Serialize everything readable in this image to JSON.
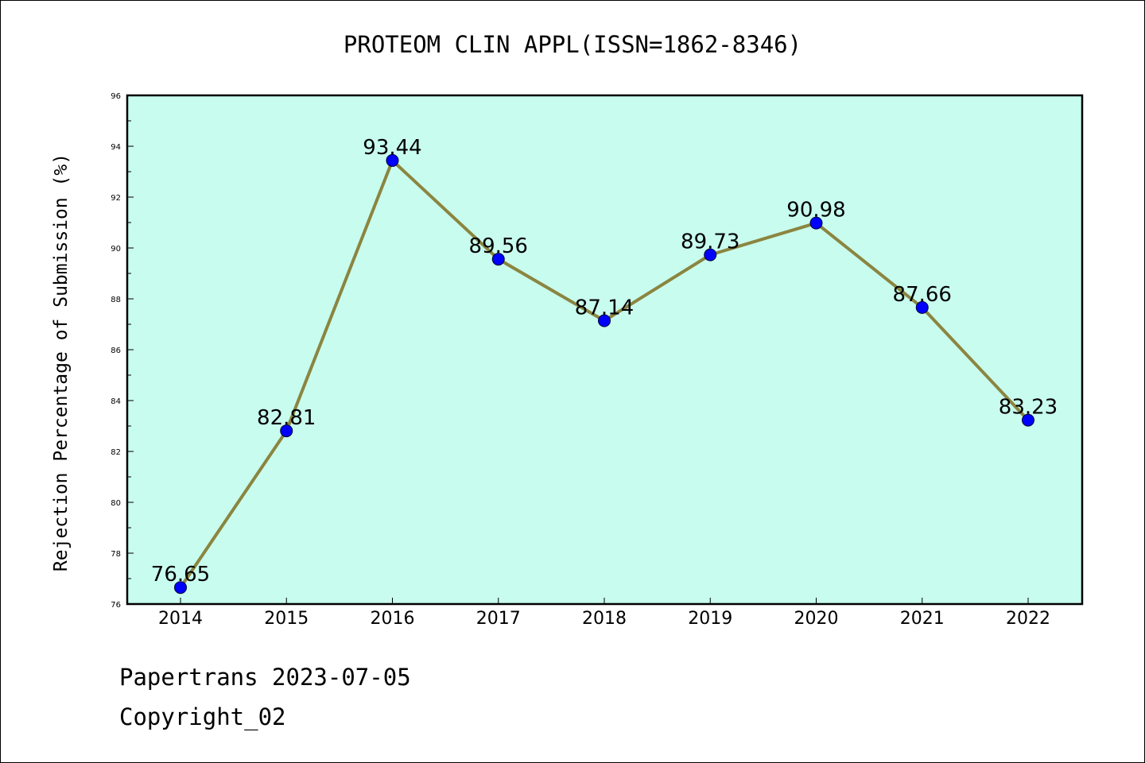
{
  "chart_data": {
    "type": "line",
    "title": "PROTEOM CLIN APPL(ISSN=1862-8346)",
    "xlabel": "",
    "ylabel": "Rejection Percentage of Submission (%)",
    "categories": [
      "2014",
      "2015",
      "2016",
      "2017",
      "2018",
      "2019",
      "2020",
      "2021",
      "2022"
    ],
    "series": [
      {
        "values": [
          76.65,
          82.81,
          93.44,
          89.56,
          87.14,
          89.73,
          90.98,
          87.66,
          83.23
        ],
        "labels": [
          "76.65",
          "82.81",
          "93.44",
          "89.56",
          "87.14",
          "89.73",
          "90.98",
          "87.66",
          "83.23"
        ],
        "line_color": "#8b8540",
        "marker_color": "#0000ff"
      }
    ],
    "ylim": [
      76,
      96
    ],
    "yticks": [
      "76",
      "78",
      "80",
      "82",
      "84",
      "86",
      "88",
      "90",
      "92",
      "94",
      "96"
    ],
    "plot_background": "#c8fcee",
    "grid": false,
    "legend": "none"
  },
  "footer": {
    "source_line": "Papertrans 2023-07-05",
    "copyright_line": "Copyright_02"
  }
}
